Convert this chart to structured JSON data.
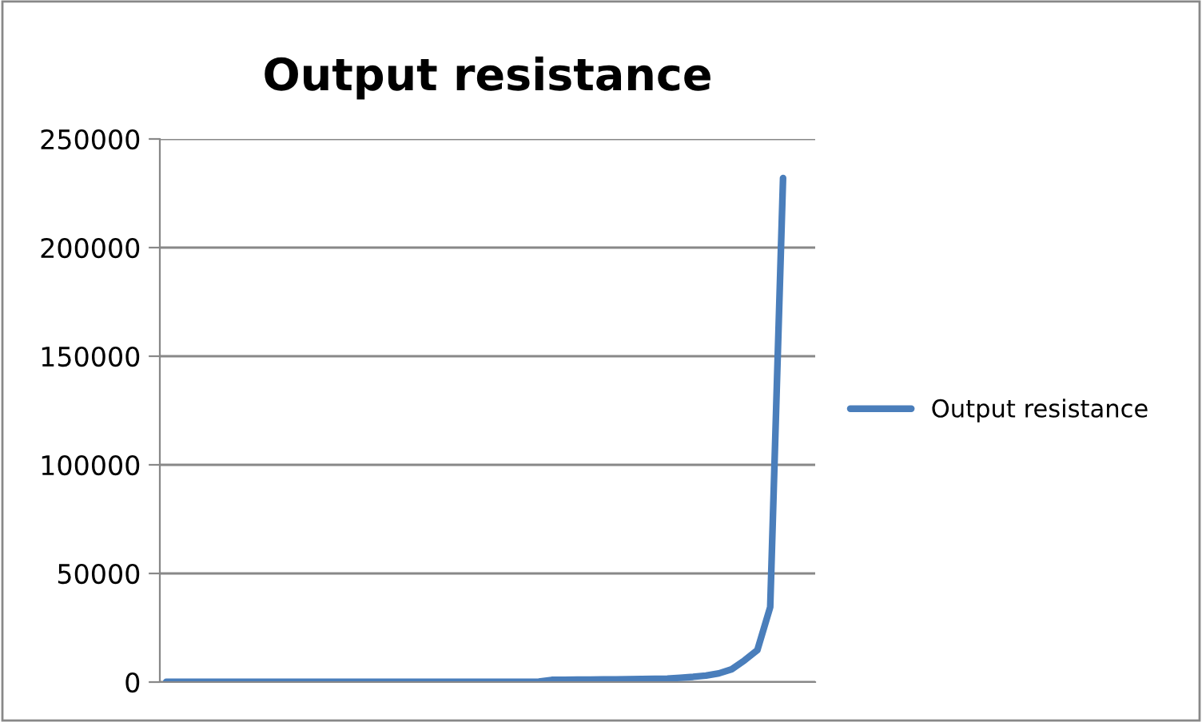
{
  "chart_data": {
    "type": "line",
    "title": "Output resistance",
    "categories": [
      null,
      null,
      null,
      null,
      null,
      null,
      null,
      null,
      null,
      null,
      null,
      null,
      null,
      null,
      null,
      null,
      null,
      null,
      null,
      null,
      null,
      null,
      null,
      null,
      null,
      null,
      null,
      null,
      null,
      null,
      null,
      null,
      null,
      null,
      null,
      null,
      null,
      null,
      null,
      null,
      null,
      null,
      null,
      null,
      null,
      null,
      null,
      null,
      null
    ],
    "series": [
      {
        "name": "Output resistance",
        "color": "#4a7ebb",
        "values": [
          100,
          100,
          100,
          100,
          100,
          100,
          100,
          100,
          100,
          100,
          100,
          100,
          100,
          100,
          100,
          100,
          100,
          100,
          100,
          100,
          100,
          100,
          100,
          100,
          100,
          100,
          100,
          100,
          100,
          200,
          1000,
          1000,
          1100,
          1100,
          1200,
          1200,
          1300,
          1400,
          1500,
          1600,
          2000,
          2400,
          3000,
          4000,
          5900,
          10000,
          14700,
          34500,
          232000
        ]
      }
    ],
    "ylim": [
      0,
      250000
    ],
    "yticks": [
      0,
      50000,
      100000,
      150000,
      200000,
      250000
    ],
    "grid": "y",
    "legend": "right",
    "marker": "none",
    "line_style": "solid"
  }
}
